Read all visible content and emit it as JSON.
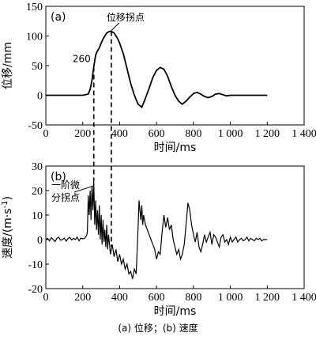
{
  "caption": "(a) 位移；(b) 速度",
  "chart_data": [
    {
      "type": "line",
      "panel_label": "(a)",
      "xlabel": "时间/ms",
      "ylabel": "位移/mm",
      "xlim": [
        0,
        1400
      ],
      "ylim": [
        -50,
        150
      ],
      "xticks": [
        0,
        200,
        400,
        600,
        800,
        1000,
        1200,
        1400
      ],
      "xtick_labels": [
        "0",
        "200",
        "400",
        "600",
        "800",
        "1 000",
        "1 200",
        "1 400"
      ],
      "yticks": [
        -50,
        0,
        50,
        100,
        150
      ],
      "ytick_labels": [
        "-50",
        "0",
        "50",
        "100",
        "150"
      ],
      "annotations": [
        {
          "text": "位移拐点",
          "x": 355,
          "y": 108
        },
        {
          "text": "260",
          "x": 260,
          "y": 48
        }
      ],
      "series": [
        {
          "x": [
            0,
            100,
            200,
            230,
            240,
            250,
            260,
            270,
            280,
            290,
            300,
            310,
            320,
            330,
            340,
            350,
            360,
            370,
            380,
            390,
            400,
            420,
            440,
            460,
            480,
            500,
            520,
            540,
            560,
            580,
            600,
            620,
            640,
            660,
            680,
            700,
            720,
            740,
            760,
            780,
            800,
            820,
            840,
            860,
            880,
            900,
            920,
            940,
            960,
            980,
            1000,
            1050,
            1100,
            1150,
            1200
          ],
          "y": [
            0,
            0,
            0,
            2,
            10,
            25,
            48,
            68,
            75,
            80,
            88,
            95,
            100,
            105,
            107,
            108,
            107,
            105,
            100,
            95,
            88,
            70,
            45,
            20,
            0,
            -15,
            -20,
            -5,
            12,
            30,
            42,
            47,
            44,
            32,
            15,
            0,
            -10,
            -15,
            -10,
            -3,
            3,
            5,
            2,
            -2,
            -4,
            -2,
            2,
            3,
            1,
            -1,
            0,
            0,
            0,
            0,
            0
          ]
        }
      ]
    },
    {
      "type": "line",
      "panel_label": "(b)",
      "xlabel": "时间/ms",
      "ylabel": "速度/(m·s⁻¹)",
      "ylabel_main": "速度",
      "ylabel_unit": "/(m·s",
      "ylabel_sup": "-1",
      "ylabel_close": ")",
      "xlim": [
        0,
        1400
      ],
      "ylim": [
        -20,
        30
      ],
      "xticks": [
        0,
        200,
        400,
        600,
        800,
        1000,
        1200,
        1400
      ],
      "xtick_labels": [
        "0",
        "200",
        "400",
        "600",
        "800",
        "1 000",
        "1 200",
        "1 400"
      ],
      "yticks": [
        -20,
        -10,
        0,
        10,
        20,
        30
      ],
      "ytick_labels": [
        "-20",
        "-10",
        "0",
        "10",
        "20",
        "30"
      ],
      "annotations": [
        {
          "text_line1": "一阶微",
          "text_line2": "分拐点",
          "x": 262,
          "y": 22
        }
      ],
      "series": [
        {
          "x": [
            0,
            10,
            20,
            30,
            40,
            50,
            60,
            70,
            80,
            90,
            100,
            110,
            120,
            130,
            140,
            150,
            160,
            170,
            180,
            190,
            200,
            210,
            220,
            225,
            230,
            235,
            240,
            245,
            250,
            255,
            260,
            265,
            270,
            275,
            280,
            285,
            290,
            295,
            300,
            305,
            310,
            315,
            320,
            325,
            330,
            335,
            340,
            350,
            360,
            370,
            380,
            390,
            400,
            410,
            420,
            430,
            440,
            450,
            460,
            470,
            480,
            490,
            500,
            505,
            510,
            515,
            520,
            525,
            530,
            540,
            550,
            560,
            570,
            580,
            590,
            600,
            610,
            620,
            630,
            640,
            650,
            660,
            670,
            680,
            690,
            700,
            710,
            720,
            730,
            740,
            750,
            760,
            770,
            780,
            790,
            800,
            810,
            820,
            830,
            840,
            850,
            860,
            870,
            880,
            890,
            900,
            910,
            920,
            930,
            940,
            950,
            960,
            970,
            980,
            990,
            1000,
            1010,
            1020,
            1030,
            1040,
            1050,
            1060,
            1070,
            1080,
            1090,
            1100,
            1110,
            1120,
            1130,
            1140,
            1150,
            1160,
            1170,
            1180,
            1190,
            1200
          ],
          "y": [
            0,
            0.5,
            -0.5,
            0.8,
            0,
            -0.8,
            0.5,
            1,
            -0.3,
            0,
            0.6,
            -0.6,
            0.4,
            0.9,
            -0.2,
            0.5,
            0,
            1,
            -0.5,
            0.6,
            0.3,
            0.5,
            1.5,
            3,
            18,
            10,
            20,
            8,
            22,
            12,
            24,
            6,
            16,
            4,
            12,
            2,
            14,
            0,
            10,
            -2,
            8,
            -1,
            4,
            -3,
            6,
            -4,
            2,
            -6,
            -2,
            -7,
            -4,
            -9,
            -6,
            -10,
            -8,
            -12,
            -10,
            -14,
            -13,
            -16,
            -12,
            -14,
            5,
            16,
            12,
            8,
            14,
            6,
            10,
            6,
            4,
            2,
            0,
            -2,
            -4,
            -8,
            -5,
            -6,
            3,
            10,
            5,
            9,
            4,
            6,
            0,
            -3,
            -6,
            -4,
            -8,
            -6,
            -2,
            6,
            15,
            12,
            6,
            2,
            -1,
            3,
            -3,
            -5,
            -2,
            2,
            -1,
            1,
            3,
            -2,
            2,
            1,
            -1,
            -3,
            1,
            2,
            -1,
            0,
            -2,
            1,
            -1,
            0,
            1,
            -1,
            0,
            0.5,
            -0.5,
            0,
            1,
            -0.5,
            0.5,
            0,
            -0.5,
            0.5,
            0,
            0.5,
            -0.5,
            0,
            0,
            0
          ]
        }
      ]
    }
  ]
}
